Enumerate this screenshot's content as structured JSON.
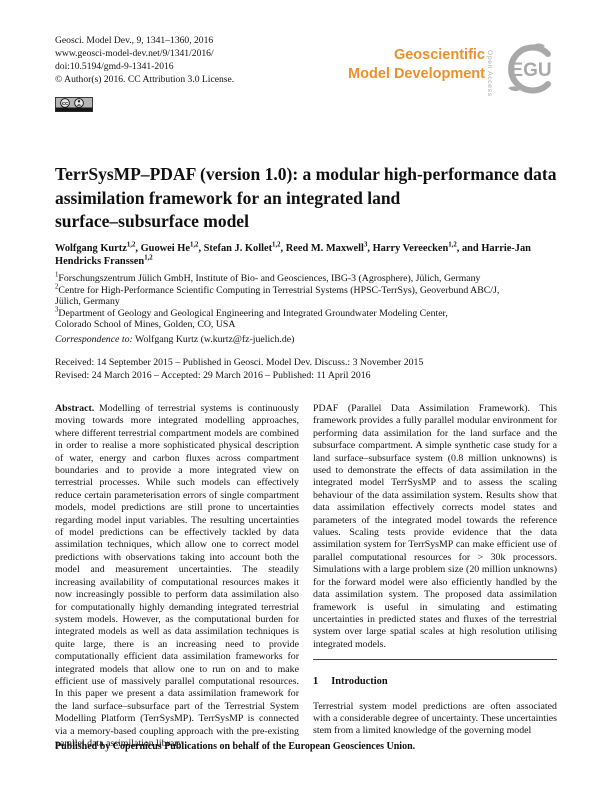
{
  "header": {
    "citation_lines": [
      "Geosci. Model Dev., 9, 1341–1360, 2016",
      "www.geosci-model-dev.net/9/1341/2016/",
      "doi:10.5194/gmd-9-1341-2016",
      "© Author(s) 2016. CC Attribution 3.0 License."
    ],
    "license_badge": "CC BY",
    "brand": {
      "journal_line1": "Geoscientific",
      "journal_line2": "Model Development",
      "open_access": "Open Access",
      "egu_acronym": "EGU",
      "brand_orange": "#ee9028",
      "brand_grey": "#a9a9a9"
    }
  },
  "article": {
    "title_lines": [
      "TerrSysMP–PDAF (version 1.0): a modular high-performance data",
      "assimilation framework for an integrated land",
      "surface–subsurface model"
    ],
    "authors": [
      {
        "name": "Wolfgang Kurtz",
        "sup": "1,2"
      },
      {
        "name": "Guowei He",
        "sup": "1,2"
      },
      {
        "name": "Stefan J. Kollet",
        "sup": "1,2"
      },
      {
        "name": "Reed M. Maxwell",
        "sup": "3"
      },
      {
        "name": "Harry Vereecken",
        "sup": "1,2"
      },
      {
        "name": "Harrie-Jan Hendricks Franssen",
        "sup": "1,2"
      }
    ],
    "affiliations": [
      {
        "sup": "1",
        "text": "Forschungszentrum Jülich GmbH, Institute of Bio- and Geosciences, IBG-3 (Agrosphere), Jülich, Germany"
      },
      {
        "sup": "2",
        "text": "Centre for High-Performance Scientific Computing in Terrestrial Systems (HPSC-TerrSys), Geoverbund ABC/J,\nJülich, Germany"
      },
      {
        "sup": "3",
        "text": "Department of Geology and Geological Engineering and Integrated Groundwater Modeling Center,\nColorado School of Mines, Golden, CO, USA"
      }
    ],
    "correspondence": {
      "label": "Correspondence to:",
      "text": " Wolfgang Kurtz (w.kurtz@fz-juelich.de)"
    },
    "dates": {
      "received_line": "Received: 14 September 2015 – Published in Geosci. Model Dev. Discuss.: 3 November 2015",
      "revised_line": "Revised: 24 March 2016 – Accepted: 29 March 2016 – Published: 11 April 2016"
    }
  },
  "abstract": {
    "label": "Abstract.",
    "part1": " Modelling of terrestrial systems is continuously moving towards more integrated modelling approaches, where different terrestrial compartment models are combined in order to realise a more sophisticated physical description of water, energy and carbon fluxes across compartment boundaries and to provide a more integrated view on terrestrial processes. While such models can effectively reduce certain parameterisation errors of single compartment models, model predictions are still prone to uncertainties regarding model input variables. The resulting uncertainties of model predictions can be effectively tackled by data assimilation techniques, which allow one to correct model predictions with observations taking into account both the model and measurement uncertainties. The steadily increasing availability of computational resources makes it now increasingly possible to perform data assimilation also for computationally highly demanding integrated terrestrial system models. However, as the computational burden for integrated models as well as data assimilation techniques is quite large, there is an increasing need to provide computationally efficient data assimilation frameworks for integrated models that allow one to run on and to make efficient use of massively parallel computational resources. In this paper we present a data assimilation framework for the land surface–subsurface part of the Terrestrial System Modelling Platform (TerrSysMP). TerrSysMP is connected via a memory-based coupling approach with the pre-existing parallel data assimilation library",
    "part2": "PDAF (Parallel Data Assimilation Framework). This framework provides a fully parallel modular environment for performing data assimilation for the land surface and the subsurface compartment. A simple synthetic case study for a land surface–subsurface system (0.8 million unknowns) is used to demonstrate the effects of data assimilation in the integrated model TerrSysMP and to assess the scaling behaviour of the data assimilation system. Results show that data assimilation effectively corrects model states and parameters of the integrated model towards the reference values. Scaling tests provide evidence that the data assimilation system for TerrSysMP can make efficient use of parallel computational resources for > 30k processors. Simulations with a large problem size (20 million unknowns) for the forward model were also efficiently handled by the data assimilation system. The proposed data assimilation framework is useful in simulating and estimating uncertainties in predicted states and fluxes of the terrestrial system over large spatial scales at high resolution utilising integrated models."
  },
  "intro": {
    "number": "1",
    "title": "Introduction",
    "paragraph": "Terrestrial system model predictions are often associated with a considerable degree of uncertainty. These uncertainties stem from a limited knowledge of the governing model"
  },
  "footer": {
    "text": "Published by Copernicus Publications on behalf of the European Geosciences Union."
  }
}
